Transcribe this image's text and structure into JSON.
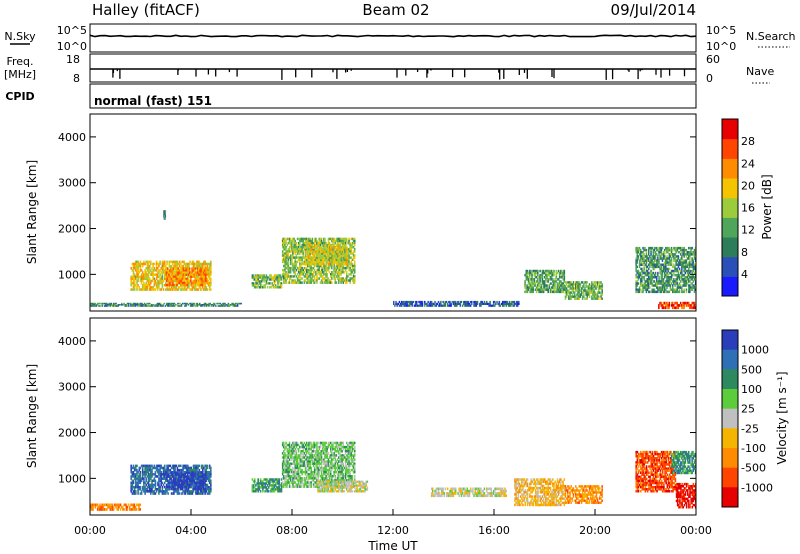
{
  "header": {
    "station": "Halley (fitACF)",
    "beam": "Beam 02",
    "date": "09/Jul/2014"
  },
  "strips": {
    "nsky_label": "N.Sky",
    "nsky_ticks": [
      "10^5",
      "10^0"
    ],
    "nsearch_label": "N.Search",
    "nsearch_ticks": [
      "10^5",
      "10^0"
    ],
    "freq_label_1": "Freq.",
    "freq_label_2": "[MHz]",
    "freq_ticks": [
      "18",
      "8"
    ],
    "nave_label": "Nave",
    "nave_ticks": [
      "60",
      "0"
    ],
    "cpid_label": "CPID",
    "cpid_text": "normal (fast) 151"
  },
  "colors": {
    "power": [
      "#1a1aff",
      "#2a4fb8",
      "#2e7d5a",
      "#4fa55a",
      "#9ccc3c",
      "#f5c400",
      "#ff8c00",
      "#ff4500",
      "#e60000"
    ],
    "velocity": [
      "#2a3ebc",
      "#2f6fb5",
      "#2e8a5e",
      "#5ccc3c",
      "#c0c0c0",
      "#f5b400",
      "#ff8c00",
      "#ff4500",
      "#e60000"
    ]
  },
  "chart_data": [
    {
      "type": "heatmap",
      "title": "Power",
      "xlabel": "",
      "ylabel": "Slant Range [km]",
      "ylim": [
        200,
        4500
      ],
      "y_ticks": [
        "1000",
        "2000",
        "3000",
        "4000"
      ],
      "y_tick_values": [
        1000,
        2000,
        3000,
        4000
      ],
      "colorbar_label": "Power [dB]",
      "colorbar_ticks": [
        "4",
        "8",
        "12",
        "16",
        "20",
        "24",
        "28"
      ],
      "colorbar_range": [
        0,
        32
      ],
      "regions": [
        {
          "x0": 1.6,
          "x1": 4.8,
          "y0": 650,
          "y1": 1300,
          "v": 19
        },
        {
          "x0": 3.0,
          "x1": 4.6,
          "y0": 750,
          "y1": 1150,
          "v": 23
        },
        {
          "x0": 0.0,
          "x1": 6.0,
          "y0": 300,
          "y1": 380,
          "v": 10
        },
        {
          "x0": 6.4,
          "x1": 7.6,
          "y0": 700,
          "y1": 1000,
          "v": 14
        },
        {
          "x0": 7.6,
          "x1": 10.5,
          "y0": 800,
          "y1": 1800,
          "v": 15
        },
        {
          "x0": 8.5,
          "x1": 10.2,
          "y0": 1200,
          "y1": 1650,
          "v": 18
        },
        {
          "x0": 17.2,
          "x1": 18.8,
          "y0": 600,
          "y1": 1100,
          "v": 12
        },
        {
          "x0": 18.8,
          "x1": 20.3,
          "y0": 450,
          "y1": 850,
          "v": 13
        },
        {
          "x0": 21.6,
          "x1": 24.0,
          "y0": 600,
          "y1": 1600,
          "v": 11
        },
        {
          "x0": 22.5,
          "x1": 24.0,
          "y0": 250,
          "y1": 400,
          "v": 27
        },
        {
          "x0": 12.0,
          "x1": 17.0,
          "y0": 300,
          "y1": 420,
          "v": 6
        },
        {
          "x0": 2.9,
          "x1": 3.0,
          "y0": 2200,
          "y1": 2400,
          "v": 8
        }
      ]
    },
    {
      "type": "heatmap",
      "title": "Velocity",
      "xlabel": "Time UT",
      "ylabel": "Slant Range [km]",
      "ylim": [
        200,
        4500
      ],
      "y_ticks": [
        "1000",
        "2000",
        "3000",
        "4000"
      ],
      "y_tick_values": [
        1000,
        2000,
        3000,
        4000
      ],
      "x_ticks": [
        "00:00",
        "04:00",
        "08:00",
        "12:00",
        "16:00",
        "20:00",
        "00:00"
      ],
      "x_tick_values": [
        0,
        4,
        8,
        12,
        16,
        20,
        24
      ],
      "colorbar_label": "Velocity [m s⁻¹]",
      "colorbar_ticks": [
        "1000",
        "500",
        "100",
        "25",
        "-25",
        "-100",
        "-500",
        "-1000"
      ],
      "regions": [
        {
          "x0": 1.6,
          "x1": 4.8,
          "y0": 650,
          "y1": 1300,
          "v": 1
        },
        {
          "x0": 3.0,
          "x1": 4.6,
          "y0": 750,
          "y1": 1150,
          "v": 0
        },
        {
          "x0": 0.0,
          "x1": 2.0,
          "y0": 300,
          "y1": 450,
          "v": 6
        },
        {
          "x0": 6.4,
          "x1": 7.6,
          "y0": 700,
          "y1": 1000,
          "v": 2
        },
        {
          "x0": 7.6,
          "x1": 10.5,
          "y0": 800,
          "y1": 1800,
          "v": 3
        },
        {
          "x0": 9.0,
          "x1": 11.0,
          "y0": 700,
          "y1": 950,
          "v": 4
        },
        {
          "x0": 13.5,
          "x1": 16.5,
          "y0": 600,
          "y1": 800,
          "v": 4
        },
        {
          "x0": 16.8,
          "x1": 18.8,
          "y0": 400,
          "y1": 1000,
          "v": 5
        },
        {
          "x0": 18.8,
          "x1": 20.3,
          "y0": 450,
          "y1": 850,
          "v": 6
        },
        {
          "x0": 21.6,
          "x1": 23.2,
          "y0": 700,
          "y1": 1600,
          "v": 7
        },
        {
          "x0": 23.2,
          "x1": 24.0,
          "y0": 350,
          "y1": 900,
          "v": 8
        },
        {
          "x0": 23.0,
          "x1": 24.0,
          "y0": 1100,
          "y1": 1600,
          "v": 2
        }
      ]
    }
  ]
}
